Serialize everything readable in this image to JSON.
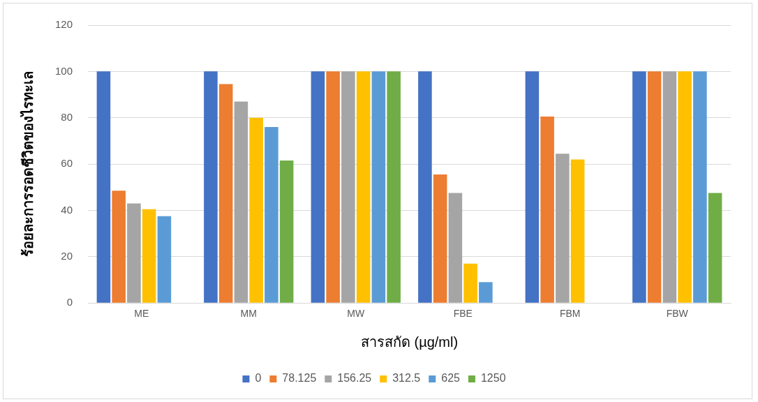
{
  "chart_data": {
    "type": "bar",
    "xlabel": "สารสกัด (µg/ml)",
    "ylabel": "ร้อยละการรอดชีวิตของไรทะเล",
    "categories": [
      "ME",
      "MM",
      "MW",
      "FBE",
      "FBM",
      "FBW"
    ],
    "series": [
      {
        "name": "0",
        "color": "#4472c4",
        "values": [
          100,
          100,
          100,
          100,
          100,
          100
        ]
      },
      {
        "name": "78.125",
        "color": "#ed7d31",
        "values": [
          48.5,
          94.5,
          100,
          55.5,
          80.5,
          100
        ]
      },
      {
        "name": "156.25",
        "color": "#a5a5a5",
        "values": [
          43,
          87,
          100,
          47.5,
          64.5,
          100
        ]
      },
      {
        "name": "312.5",
        "color": "#ffc000",
        "values": [
          40.5,
          80,
          100,
          17,
          62,
          100
        ]
      },
      {
        "name": "625",
        "color": "#5b9bd5",
        "values": [
          37.5,
          76,
          100,
          9,
          0,
          100
        ]
      },
      {
        "name": "1250",
        "color": "#70ad47",
        "values": [
          0,
          61.5,
          100,
          0,
          0,
          47.5
        ]
      }
    ],
    "ylim": [
      0,
      120
    ],
    "yticks": [
      0,
      20,
      40,
      60,
      80,
      100,
      120
    ],
    "grid": "y",
    "legend": "bottom"
  }
}
